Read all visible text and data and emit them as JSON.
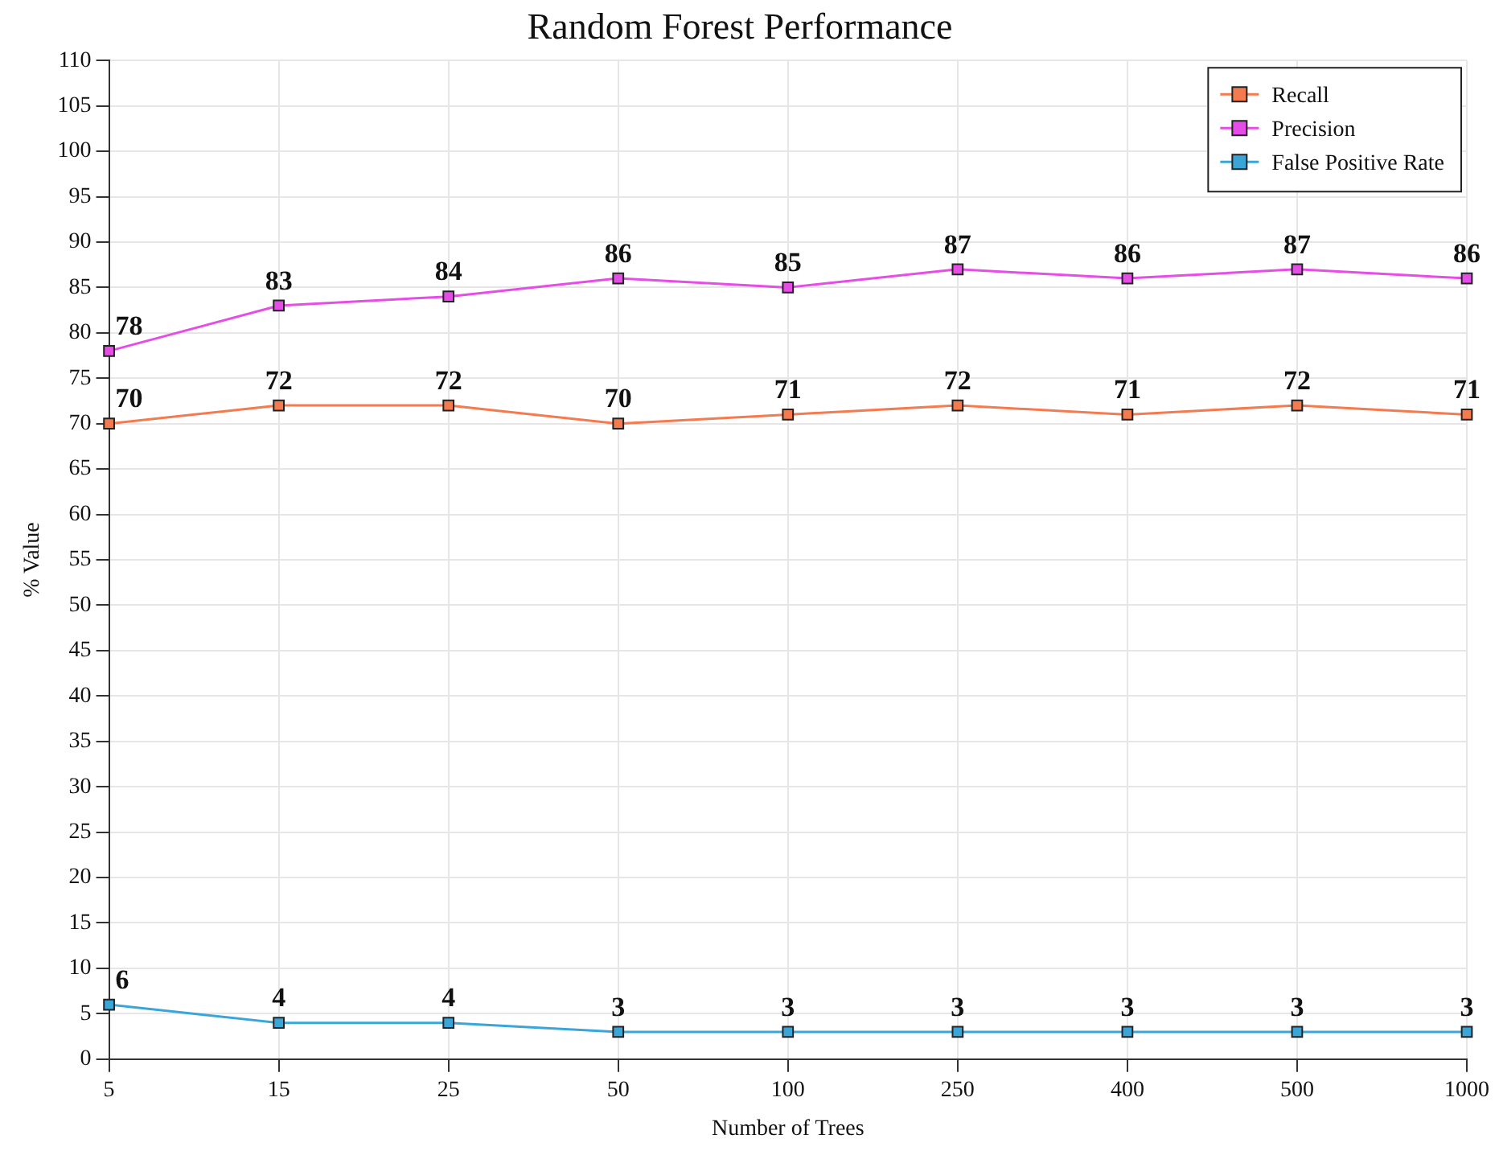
{
  "chart_data": {
    "type": "line",
    "title": "Random Forest Performance",
    "xlabel": "Number of Trees",
    "ylabel": "% Value",
    "categories": [
      "5",
      "15",
      "25",
      "50",
      "100",
      "250",
      "400",
      "500",
      "1000"
    ],
    "series": [
      {
        "name": "Recall",
        "color": "#f47a4f",
        "values": [
          70,
          72,
          72,
          70,
          71,
          72,
          71,
          72,
          71
        ]
      },
      {
        "name": "Precision",
        "color": "#e64de6",
        "values": [
          78,
          83,
          84,
          86,
          85,
          87,
          86,
          87,
          86
        ]
      },
      {
        "name": "False Positive Rate",
        "color": "#3aa6d8",
        "values": [
          6,
          4,
          4,
          3,
          3,
          3,
          3,
          3,
          3
        ]
      }
    ],
    "ylim": [
      0,
      110
    ],
    "yticks": [
      0,
      5,
      10,
      15,
      20,
      25,
      30,
      35,
      40,
      45,
      50,
      55,
      60,
      65,
      70,
      75,
      80,
      85,
      90,
      95,
      100,
      105,
      110
    ],
    "grid": true,
    "legend": "top right",
    "marker": "square",
    "line_style": "solid",
    "data_labels": true
  }
}
